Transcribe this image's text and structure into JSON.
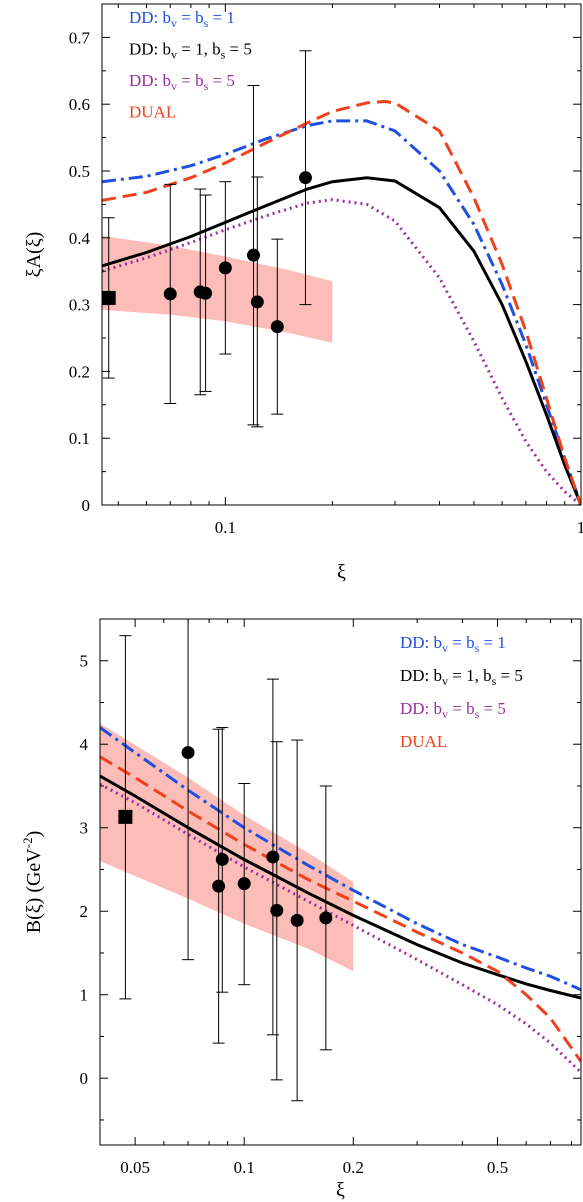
{
  "chart_data": [
    {
      "type": "line",
      "xlabel": "ξ",
      "ylabel": "ξA(ξ)",
      "xscale": "log",
      "xlim": [
        0.045,
        1.0
      ],
      "ylim": [
        0,
        0.75
      ],
      "xticks": [
        {
          "v": 0.1,
          "label": "0.1"
        },
        {
          "v": 1,
          "label": "1"
        }
      ],
      "yticks": [
        {
          "v": 0,
          "label": "0"
        },
        {
          "v": 0.1,
          "label": "0.1"
        },
        {
          "v": 0.2,
          "label": "0.2"
        },
        {
          "v": 0.3,
          "label": "0.3"
        },
        {
          "v": 0.4,
          "label": "0.4"
        },
        {
          "v": 0.5,
          "label": "0.5"
        },
        {
          "v": 0.6,
          "label": "0.6"
        },
        {
          "v": 0.7,
          "label": "0.7"
        }
      ],
      "legend_position": "top-left",
      "legend": [
        {
          "base": "DD: b",
          "sub1": "v",
          "mid": " = b",
          "sub2": "s",
          "tail": " = 1",
          "color": "#1f4fe0"
        },
        {
          "base": "DD: b",
          "sub1": "v",
          "mid": " = 1,  b",
          "sub2": "s",
          "tail": " = 5",
          "color": "#000000"
        },
        {
          "base": "DD: b",
          "sub1": "v",
          "mid": " = b",
          "sub2": "s",
          "tail": " = 5",
          "color": "#9a2fa3"
        },
        {
          "base": "DUAL",
          "sub1": "",
          "mid": "",
          "sub2": "",
          "tail": "",
          "color": "#f0401c"
        }
      ],
      "series": [
        {
          "style": "dashdot",
          "color": "#1f4fe0",
          "x": [
            0.045,
            0.06,
            0.08,
            0.1,
            0.13,
            0.17,
            0.2,
            0.25,
            0.3,
            0.4,
            0.5,
            0.6,
            0.7,
            0.8,
            0.9,
            1.0
          ],
          "y": [
            0.484,
            0.492,
            0.508,
            0.525,
            0.548,
            0.568,
            0.575,
            0.575,
            0.56,
            0.5,
            0.42,
            0.33,
            0.24,
            0.15,
            0.07,
            0.0
          ]
        },
        {
          "style": "solid",
          "color": "#000000",
          "x": [
            0.045,
            0.06,
            0.08,
            0.1,
            0.13,
            0.17,
            0.2,
            0.25,
            0.3,
            0.4,
            0.5,
            0.6,
            0.7,
            0.8,
            0.9,
            1.0
          ],
          "y": [
            0.358,
            0.378,
            0.402,
            0.423,
            0.448,
            0.473,
            0.484,
            0.49,
            0.485,
            0.445,
            0.38,
            0.3,
            0.215,
            0.135,
            0.06,
            0.0
          ]
        },
        {
          "style": "dotted",
          "color": "#9a2fa3",
          "x": [
            0.045,
            0.06,
            0.08,
            0.1,
            0.13,
            0.17,
            0.2,
            0.25,
            0.3,
            0.4,
            0.5,
            0.6,
            0.7,
            0.8,
            0.9,
            1.0
          ],
          "y": [
            0.35,
            0.37,
            0.393,
            0.412,
            0.433,
            0.452,
            0.457,
            0.45,
            0.425,
            0.34,
            0.245,
            0.16,
            0.095,
            0.05,
            0.02,
            0.0
          ]
        },
        {
          "style": "dashed",
          "color": "#f0401c",
          "x": [
            0.045,
            0.06,
            0.08,
            0.1,
            0.13,
            0.17,
            0.2,
            0.25,
            0.28,
            0.3,
            0.4,
            0.5,
            0.6,
            0.7,
            0.8,
            0.9,
            1.0
          ],
          "y": [
            0.456,
            0.468,
            0.49,
            0.512,
            0.542,
            0.572,
            0.589,
            0.602,
            0.604,
            0.602,
            0.56,
            0.46,
            0.36,
            0.26,
            0.16,
            0.07,
            0.0
          ]
        }
      ],
      "band": {
        "color": "#fbb0aa",
        "x": [
          0.045,
          0.07,
          0.1,
          0.15,
          0.2
        ],
        "upper": [
          0.403,
          0.388,
          0.372,
          0.352,
          0.335
        ],
        "lower": [
          0.292,
          0.285,
          0.275,
          0.258,
          0.243
        ]
      },
      "points": [
        {
          "x": 0.047,
          "y": 0.31,
          "lo": 0.19,
          "hi": 0.43,
          "marker": "square"
        },
        {
          "x": 0.07,
          "y": 0.316,
          "lo": 0.152,
          "hi": 0.48,
          "marker": "circle"
        },
        {
          "x": 0.085,
          "y": 0.319,
          "lo": 0.165,
          "hi": 0.473,
          "marker": "circle"
        },
        {
          "x": 0.088,
          "y": 0.317,
          "lo": 0.17,
          "hi": 0.464,
          "marker": "circle"
        },
        {
          "x": 0.1,
          "y": 0.355,
          "lo": 0.226,
          "hi": 0.484,
          "marker": "circle"
        },
        {
          "x": 0.12,
          "y": 0.374,
          "lo": 0.12,
          "hi": 0.628,
          "marker": "circle"
        },
        {
          "x": 0.123,
          "y": 0.304,
          "lo": 0.117,
          "hi": 0.491,
          "marker": "circle"
        },
        {
          "x": 0.14,
          "y": 0.267,
          "lo": 0.136,
          "hi": 0.398,
          "marker": "circle"
        },
        {
          "x": 0.168,
          "y": 0.49,
          "lo": 0.3,
          "hi": 0.68,
          "marker": "circle"
        }
      ]
    },
    {
      "type": "line",
      "xlabel": "ξ",
      "ylabel": "B(ξ)   (GeV",
      "ylabel_sup": "-2",
      "ylabel_end": ")",
      "xscale": "log",
      "xlim": [
        0.04,
        0.85
      ],
      "ylim": [
        -0.8,
        5.5
      ],
      "xticks": [
        {
          "v": 0.05,
          "label": "0.05"
        },
        {
          "v": 0.1,
          "label": "0.1"
        },
        {
          "v": 0.2,
          "label": "0.2"
        },
        {
          "v": 0.5,
          "label": "0.5"
        }
      ],
      "yticks": [
        {
          "v": 0,
          "label": "0"
        },
        {
          "v": 1,
          "label": "1"
        },
        {
          "v": 2,
          "label": "2"
        },
        {
          "v": 3,
          "label": "3"
        },
        {
          "v": 4,
          "label": "4"
        },
        {
          "v": 5,
          "label": "5"
        }
      ],
      "legend_position": "top-right",
      "legend": [
        {
          "base": "DD: b",
          "sub1": "v",
          "mid": " = b",
          "sub2": "s",
          "tail": " = 1",
          "color": "#1f4fe0"
        },
        {
          "base": "DD: b",
          "sub1": "v",
          "mid": " = 1,  b",
          "sub2": "s",
          "tail": " = 5",
          "color": "#000000"
        },
        {
          "base": "DD: b",
          "sub1": "v",
          "mid": " = b",
          "sub2": "s",
          "tail": " = 5",
          "color": "#9a2fa3"
        },
        {
          "base": "DUAL",
          "sub1": "",
          "mid": "",
          "sub2": "",
          "tail": "",
          "color": "#f0401c"
        }
      ],
      "series": [
        {
          "style": "dashdot",
          "color": "#1f4fe0",
          "x": [
            0.04,
            0.05,
            0.07,
            0.1,
            0.15,
            0.2,
            0.3,
            0.4,
            0.5,
            0.6,
            0.7,
            0.85
          ],
          "y": [
            4.2,
            3.9,
            3.45,
            3.0,
            2.55,
            2.25,
            1.85,
            1.6,
            1.45,
            1.32,
            1.22,
            1.06
          ]
        },
        {
          "style": "solid",
          "color": "#000000",
          "x": [
            0.04,
            0.05,
            0.07,
            0.1,
            0.15,
            0.2,
            0.3,
            0.4,
            0.5,
            0.6,
            0.7,
            0.85
          ],
          "y": [
            3.62,
            3.38,
            3.0,
            2.62,
            2.22,
            1.95,
            1.6,
            1.38,
            1.24,
            1.13,
            1.05,
            0.96
          ]
        },
        {
          "style": "dotted",
          "color": "#9a2fa3",
          "x": [
            0.04,
            0.05,
            0.07,
            0.1,
            0.15,
            0.2,
            0.3,
            0.4,
            0.5,
            0.6,
            0.7,
            0.85
          ],
          "y": [
            3.52,
            3.3,
            2.92,
            2.53,
            2.12,
            1.83,
            1.42,
            1.12,
            0.88,
            0.65,
            0.42,
            0.07
          ]
        },
        {
          "style": "dashed",
          "color": "#f0401c",
          "x": [
            0.04,
            0.05,
            0.07,
            0.1,
            0.15,
            0.2,
            0.3,
            0.4,
            0.5,
            0.6,
            0.7,
            0.85
          ],
          "y": [
            3.85,
            3.6,
            3.2,
            2.8,
            2.38,
            2.12,
            1.75,
            1.5,
            1.28,
            1.0,
            0.72,
            0.2
          ]
        }
      ],
      "band": {
        "color": "#fbb0aa",
        "x": [
          0.04,
          0.07,
          0.1,
          0.15,
          0.2
        ],
        "upper": [
          4.25,
          3.6,
          3.15,
          2.7,
          2.35
        ],
        "lower": [
          2.6,
          2.15,
          1.85,
          1.55,
          1.28
        ]
      },
      "points": [
        {
          "x": 0.047,
          "y": 3.13,
          "lo": 0.95,
          "hi": 5.3,
          "marker": "square"
        },
        {
          "x": 0.07,
          "y": 3.9,
          "lo": 1.42,
          "hi": 6.0,
          "marker": "circle"
        },
        {
          "x": 0.085,
          "y": 2.3,
          "lo": 0.42,
          "hi": 4.18,
          "marker": "circle"
        },
        {
          "x": 0.087,
          "y": 2.62,
          "lo": 1.03,
          "hi": 4.2,
          "marker": "circle"
        },
        {
          "x": 0.1,
          "y": 2.33,
          "lo": 1.12,
          "hi": 3.53,
          "marker": "circle"
        },
        {
          "x": 0.12,
          "y": 2.65,
          "lo": 0.52,
          "hi": 4.78,
          "marker": "circle"
        },
        {
          "x": 0.123,
          "y": 2.01,
          "lo": -0.02,
          "hi": 4.03,
          "marker": "circle"
        },
        {
          "x": 0.14,
          "y": 1.89,
          "lo": -0.27,
          "hi": 4.05,
          "marker": "circle"
        },
        {
          "x": 0.168,
          "y": 1.92,
          "lo": 0.34,
          "hi": 3.5,
          "marker": "circle"
        }
      ]
    }
  ]
}
